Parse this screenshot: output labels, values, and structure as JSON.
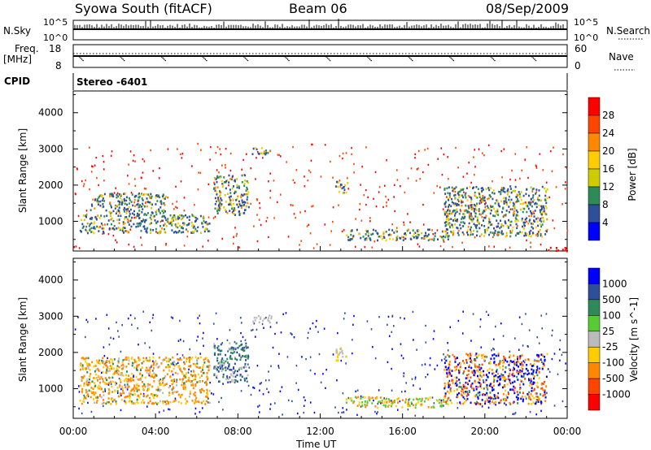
{
  "header": {
    "station": "Syowa South (fitACF)",
    "beam": "Beam 06",
    "date": "08/Sep/2009"
  },
  "nsky_panel": {
    "left_label": "N.Sky",
    "right_label": "N.Search",
    "left_ticks": [
      "10^5",
      "10^0"
    ],
    "right_ticks": [
      "10^5",
      "10^0"
    ]
  },
  "freq_panel": {
    "left_label_1": "Freq.",
    "left_label_2": "[MHz]",
    "right_label": "Nave",
    "left_ticks": [
      "18",
      "8"
    ],
    "right_ticks": [
      "60",
      "0"
    ]
  },
  "cpid": {
    "label": "CPID",
    "value": "Stereo -6401"
  },
  "axes": {
    "ylabel": "Slant Range [km]",
    "xlabel": "Time UT",
    "y_ticks": [
      "4000",
      "3000",
      "2000",
      "1000"
    ],
    "x_ticks": [
      "00:00",
      "04:00",
      "08:00",
      "12:00",
      "16:00",
      "20:00",
      "00:00"
    ]
  },
  "chart_data": [
    {
      "type": "heatmap",
      "name": "Power [dB]",
      "xlabel": "Time UT",
      "ylabel": "Slant Range [km]",
      "xlim_hours": [
        0,
        24
      ],
      "ylim_km": [
        180,
        4600
      ],
      "colorbar": {
        "label": "Power [dB]",
        "ticks": [
          "28",
          "24",
          "20",
          "16",
          "12",
          "8",
          "4"
        ],
        "colors": [
          "#ff0000",
          "#ff4400",
          "#ff8800",
          "#ffcc00",
          "#cccc00",
          "#2e8b57",
          "#2f4f9a",
          "#0000ff"
        ]
      },
      "features": [
        {
          "t_start": 0.3,
          "t_end": 6.6,
          "range_start": 700,
          "range_end": 1200,
          "level": "8-16"
        },
        {
          "t_start": 0.8,
          "t_end": 4.5,
          "range_start": 1200,
          "range_end": 1800,
          "level": "4-12"
        },
        {
          "t_start": 6.8,
          "t_end": 8.5,
          "range_start": 1200,
          "range_end": 2300,
          "level": "8-16"
        },
        {
          "t_start": 8.6,
          "t_end": 9.6,
          "range_start": 2850,
          "range_end": 3050,
          "level": "4-8"
        },
        {
          "t_start": 12.7,
          "t_end": 13.3,
          "range_start": 1800,
          "range_end": 2150,
          "level": "4-8"
        },
        {
          "t_start": 13.2,
          "t_end": 18.2,
          "range_start": 500,
          "range_end": 800,
          "level": "8-16"
        },
        {
          "t_start": 18.0,
          "t_end": 23.0,
          "range_start": 600,
          "range_end": 2000,
          "level": "4-24"
        },
        {
          "t_start": 23.0,
          "t_end": 24.0,
          "range_start": 180,
          "range_end": 300,
          "level": "24-28"
        }
      ]
    },
    {
      "type": "heatmap",
      "name": "Velocity [m s^-1]",
      "xlabel": "Time UT",
      "ylabel": "Slant Range [km]",
      "xlim_hours": [
        0,
        24
      ],
      "ylim_km": [
        180,
        4600
      ],
      "colorbar": {
        "label": "Velocity [m s^-1]",
        "ticks": [
          "1000",
          "500",
          "100",
          "25",
          "-25",
          "-100",
          "-500",
          "-1000"
        ],
        "colors": [
          "#0000ff",
          "#2f4f9a",
          "#2e8b57",
          "#55cc33",
          "#bbbbbb",
          "#ffcc00",
          "#ff8800",
          "#ff4400",
          "#ff0000"
        ]
      },
      "features": [
        {
          "t_start": 0.3,
          "t_end": 6.6,
          "range_start": 600,
          "range_end": 1900,
          "level": "-100 to -500"
        },
        {
          "t_start": 6.8,
          "t_end": 8.5,
          "range_start": 1200,
          "range_end": 2300,
          "level": "25 to 500"
        },
        {
          "t_start": 8.6,
          "t_end": 9.6,
          "range_start": 2850,
          "range_end": 3050,
          "level": "-25 to 25"
        },
        {
          "t_start": 12.7,
          "t_end": 13.3,
          "range_start": 1800,
          "range_end": 2150,
          "level": "-100 to 100"
        },
        {
          "t_start": 13.2,
          "t_end": 18.2,
          "range_start": 500,
          "range_end": 800,
          "level": "25 to -500"
        },
        {
          "t_start": 18.0,
          "t_end": 23.0,
          "range_start": 600,
          "range_end": 2000,
          "level": "-1000 to 500"
        }
      ]
    }
  ]
}
